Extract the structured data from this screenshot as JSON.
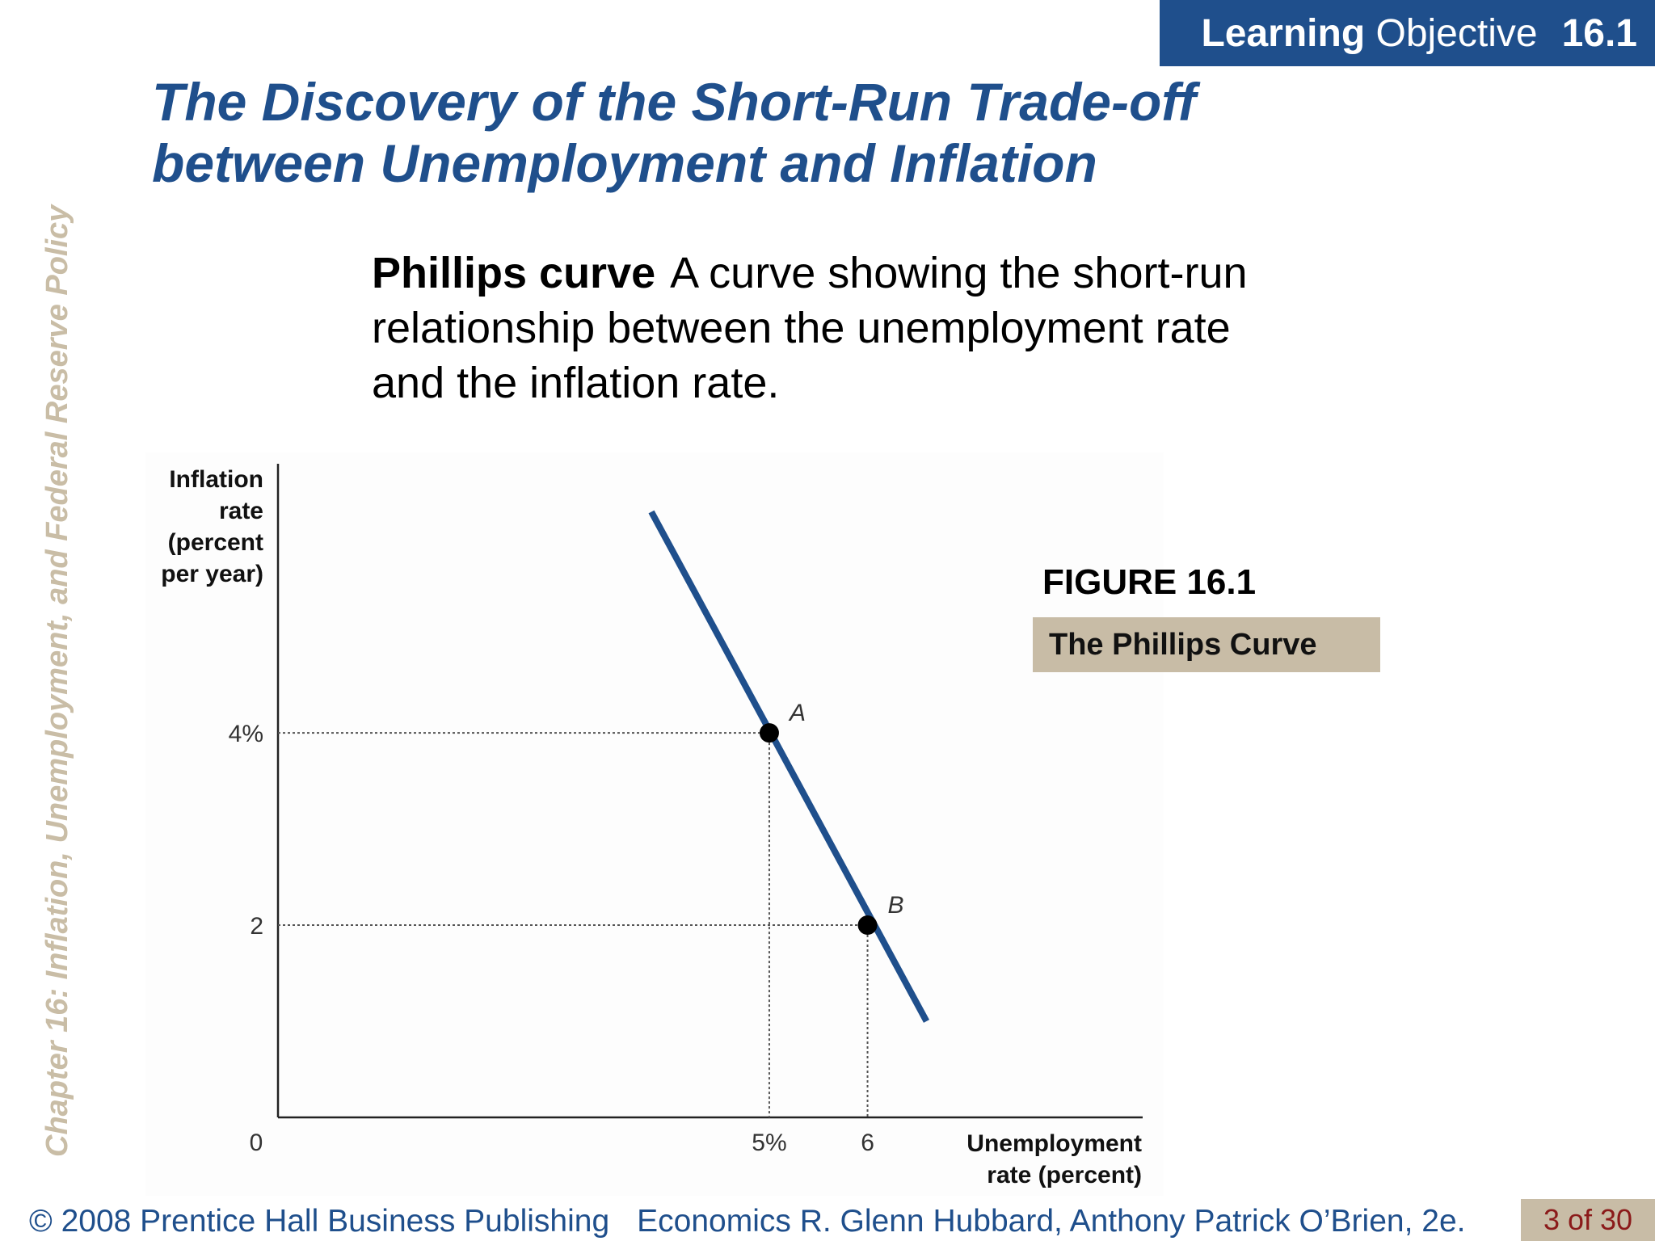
{
  "header": {
    "lo_word1": "Learning",
    "lo_word2": "Objective",
    "lo_number": "16.1"
  },
  "title_line1": "The Discovery of the Short-Run Trade-off",
  "title_line2": "between Unemployment and Inflation",
  "side_chapter": "Chapter 16:  Inflation, Unemployment, and Federal Reserve Policy",
  "definition": {
    "term": "Phillips curve",
    "text": "A curve showing the short-run relationship between the unemployment rate and the inflation rate."
  },
  "figure": {
    "label": "FIGURE 16.1",
    "caption": "The Phillips Curve"
  },
  "footer": {
    "copyright": "© 2008 Prentice Hall Business Publishing",
    "book": "Economics  R. Glenn Hubbard, Anthony Patrick O’Brien, 2e.",
    "page": "3 of 30"
  },
  "colors": {
    "brand_blue": "#1f4f8c",
    "tan": "#c8bca6",
    "page_red": "#8b1a1a"
  },
  "chart_data": {
    "type": "line",
    "title": "",
    "ylabel_lines": [
      "Inflation",
      "rate",
      "(percent",
      "per year)"
    ],
    "xlabel_lines": [
      "Unemployment",
      "rate (percent)"
    ],
    "origin_label": "0",
    "x_ticks": [
      {
        "value": 5,
        "label": "5%"
      },
      {
        "value": 6,
        "label": "6"
      }
    ],
    "y_ticks": [
      {
        "value": 4,
        "label": "4%"
      },
      {
        "value": 2,
        "label": "2"
      }
    ],
    "xlim": [
      0,
      8.8
    ],
    "ylim": [
      0,
      6.8
    ],
    "series": [
      {
        "x": [
          3.8,
          6.6
        ],
        "y": [
          6.3,
          1.0
        ],
        "color": "#1f4f8c"
      }
    ],
    "points": [
      {
        "label": "A",
        "x": 5,
        "y": 4
      },
      {
        "label": "B",
        "x": 6,
        "y": 2
      }
    ],
    "grid": false
  }
}
